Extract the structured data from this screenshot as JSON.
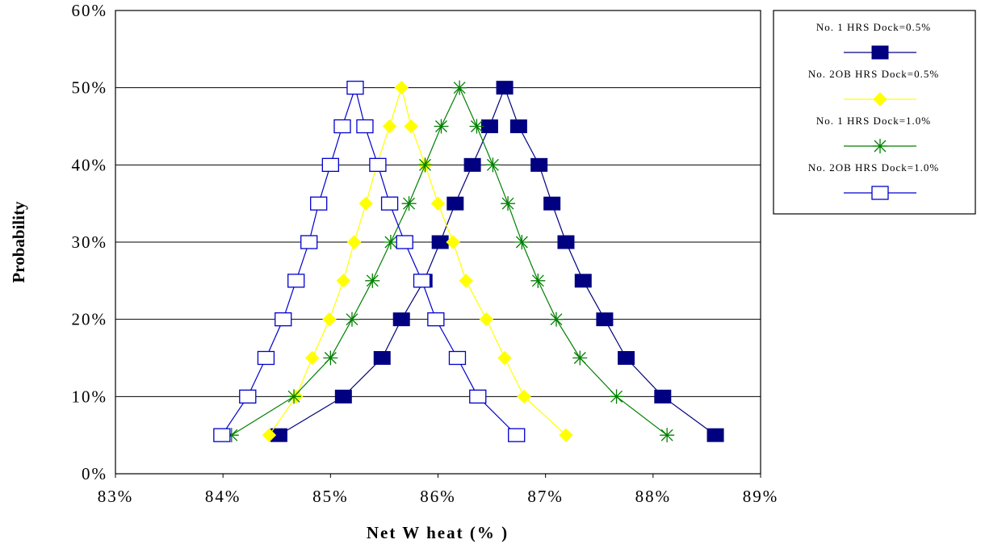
{
  "chart_data": {
    "type": "line",
    "xlabel": "Net W heat (% )",
    "ylabel": "Probability",
    "xlim": [
      83,
      89
    ],
    "ylim": [
      0,
      60
    ],
    "x_ticks": [
      "83%",
      "84%",
      "85%",
      "86%",
      "87%",
      "88%",
      "89%"
    ],
    "y_ticks": [
      "0%",
      "10%",
      "20%",
      "30%",
      "40%",
      "50%",
      "60%"
    ],
    "grid": "horizontal",
    "legend_position": "top-right",
    "series": [
      {
        "name": "No. 1 HRS Dock=0.5%",
        "color": "#000080",
        "marker": "filled-square",
        "points": [
          [
            84.52,
            5
          ],
          [
            85.12,
            10
          ],
          [
            85.48,
            15
          ],
          [
            85.66,
            20
          ],
          [
            85.87,
            25
          ],
          [
            86.02,
            30
          ],
          [
            86.16,
            35
          ],
          [
            86.32,
            40
          ],
          [
            86.48,
            45
          ],
          [
            86.62,
            50
          ],
          [
            86.75,
            45
          ],
          [
            86.94,
            40
          ],
          [
            87.06,
            35
          ],
          [
            87.19,
            30
          ],
          [
            87.35,
            25
          ],
          [
            87.55,
            20
          ],
          [
            87.75,
            15
          ],
          [
            88.09,
            10
          ],
          [
            88.58,
            5
          ]
        ]
      },
      {
        "name": "No. 2OB HRS Dock=0.5%",
        "color": "#ffff00",
        "marker": "filled-diamond",
        "points": [
          [
            84.43,
            5
          ],
          [
            84.68,
            10
          ],
          [
            84.83,
            15
          ],
          [
            84.99,
            20
          ],
          [
            85.12,
            25
          ],
          [
            85.22,
            30
          ],
          [
            85.33,
            35
          ],
          [
            85.43,
            40
          ],
          [
            85.55,
            45
          ],
          [
            85.66,
            50
          ],
          [
            85.75,
            45
          ],
          [
            85.88,
            40
          ],
          [
            86.0,
            35
          ],
          [
            86.14,
            30
          ],
          [
            86.26,
            25
          ],
          [
            86.45,
            20
          ],
          [
            86.62,
            15
          ],
          [
            86.8,
            10
          ],
          [
            87.19,
            5
          ]
        ]
      },
      {
        "name": "No. 1 HRS Dock=1.0%",
        "color": "#008000",
        "marker": "asterisk",
        "points": [
          [
            84.08,
            5
          ],
          [
            84.66,
            10
          ],
          [
            85.0,
            15
          ],
          [
            85.2,
            20
          ],
          [
            85.39,
            25
          ],
          [
            85.56,
            30
          ],
          [
            85.73,
            35
          ],
          [
            85.88,
            40
          ],
          [
            86.03,
            45
          ],
          [
            86.2,
            50
          ],
          [
            86.36,
            45
          ],
          [
            86.51,
            40
          ],
          [
            86.65,
            35
          ],
          [
            86.78,
            30
          ],
          [
            86.93,
            25
          ],
          [
            87.1,
            20
          ],
          [
            87.32,
            15
          ],
          [
            87.66,
            10
          ],
          [
            88.13,
            5
          ]
        ]
      },
      {
        "name": "No. 2OB HRS Dock=1.0%",
        "color": "#0000cc",
        "marker": "open-square",
        "points": [
          [
            83.99,
            5
          ],
          [
            84.23,
            10
          ],
          [
            84.4,
            15
          ],
          [
            84.56,
            20
          ],
          [
            84.68,
            25
          ],
          [
            84.8,
            30
          ],
          [
            84.89,
            35
          ],
          [
            85.0,
            40
          ],
          [
            85.11,
            45
          ],
          [
            85.23,
            50
          ],
          [
            85.32,
            45
          ],
          [
            85.44,
            40
          ],
          [
            85.55,
            35
          ],
          [
            85.69,
            30
          ],
          [
            85.85,
            25
          ],
          [
            85.98,
            20
          ],
          [
            86.18,
            15
          ],
          [
            86.37,
            10
          ],
          [
            86.73,
            5
          ]
        ]
      }
    ]
  }
}
